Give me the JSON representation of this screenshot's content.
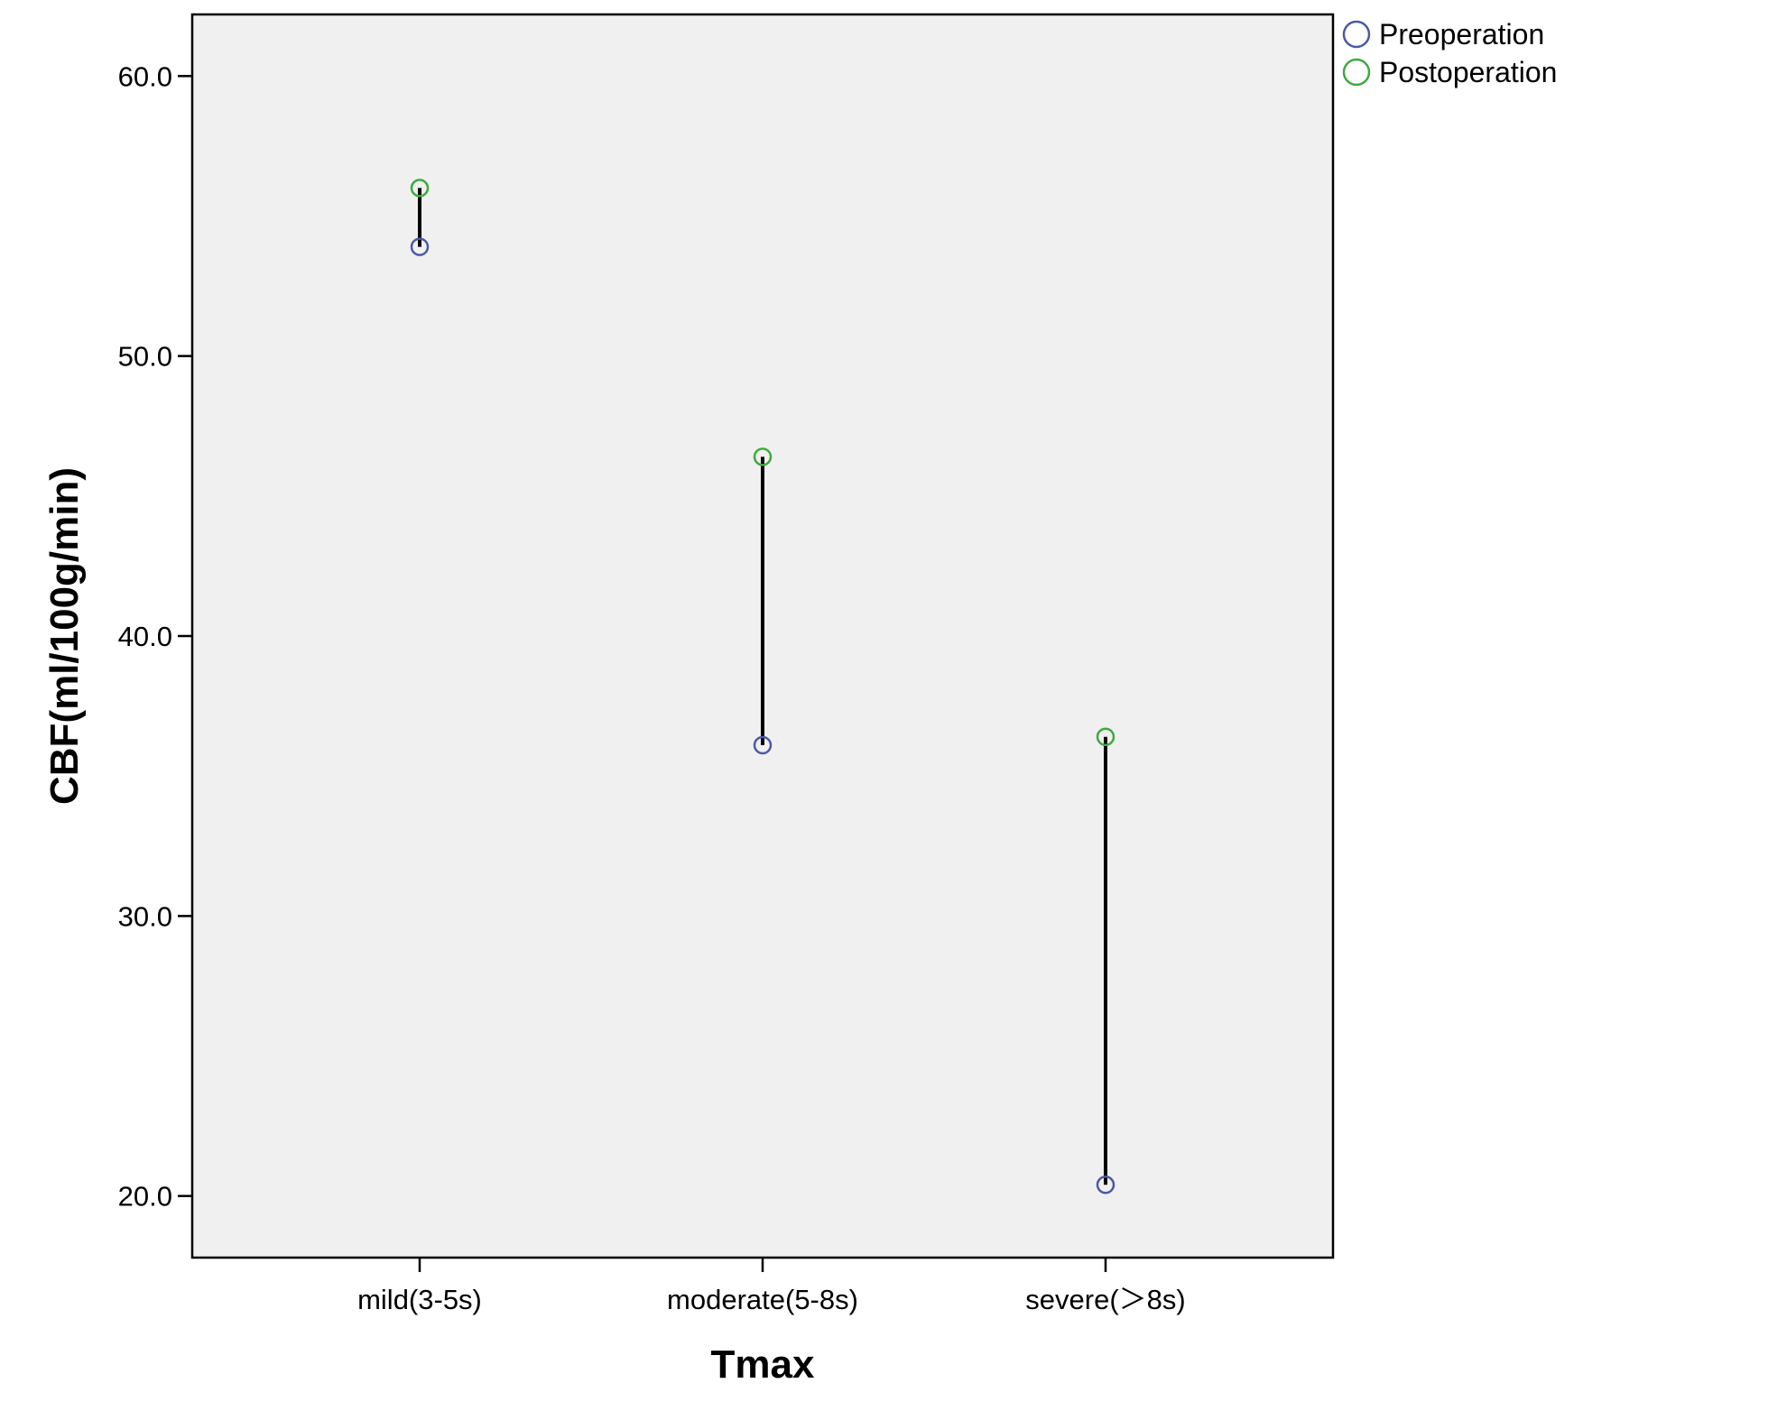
{
  "chart_data": {
    "type": "scatter",
    "subtype": "dropline",
    "title": "",
    "xlabel": "Tmax",
    "ylabel": "CBF(ml/100g/min)",
    "categories": [
      "mild(3-5s)",
      "moderate(5-8s)",
      "severe(＞8s)"
    ],
    "ylim": [
      17.8,
      62.2
    ],
    "yticks": [
      20.0,
      30.0,
      40.0,
      50.0,
      60.0
    ],
    "ytick_labels": [
      "20.0",
      "30.0",
      "40.0",
      "50.0",
      "60.0"
    ],
    "grid": false,
    "legend_position": "top-right outside plot",
    "series": [
      {
        "name": "Preoperation",
        "color": "#4a5aa8",
        "values": [
          53.9,
          36.1,
          20.4
        ]
      },
      {
        "name": "Postoperation",
        "color": "#3eaa3e",
        "values": [
          56.0,
          46.4,
          36.4
        ]
      }
    ],
    "colors": {
      "plot_background": "#f0f0f0",
      "dropline": "#000000",
      "axis": "#000000"
    }
  }
}
